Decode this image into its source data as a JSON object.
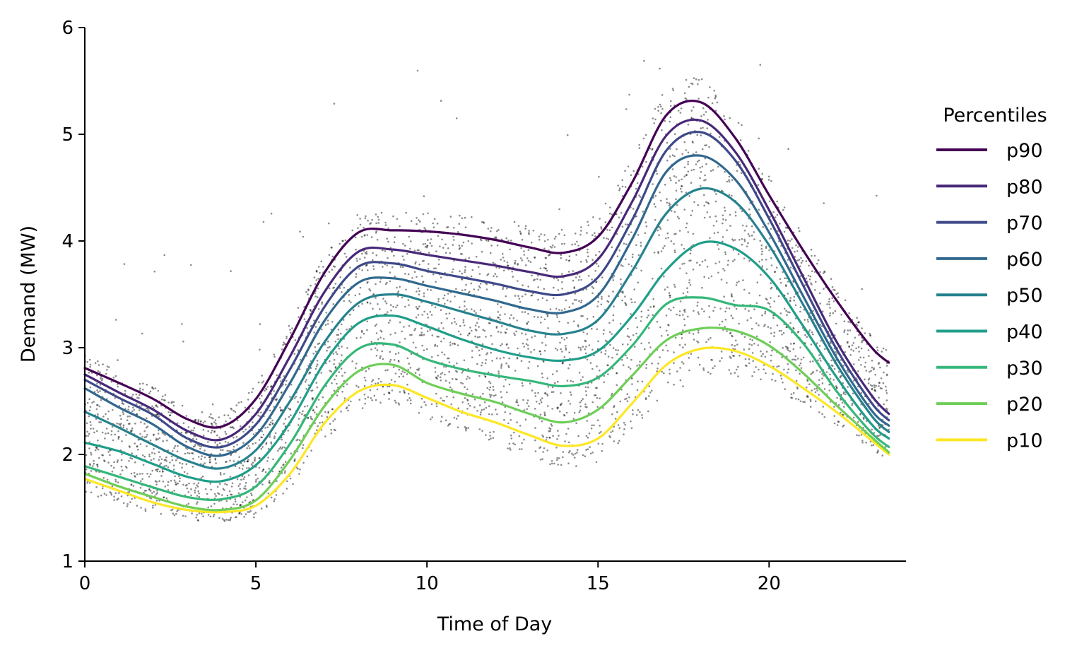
{
  "chart_data": {
    "type": "line",
    "title": "",
    "xlabel": "Time of Day",
    "ylabel": "Demand (MW)",
    "xlim": [
      0,
      24
    ],
    "ylim": [
      1,
      6
    ],
    "xticks": [
      0,
      5,
      10,
      15,
      20
    ],
    "yticks": [
      1,
      2,
      3,
      4,
      5,
      6
    ],
    "grid": false,
    "legend": {
      "title": "Percentiles",
      "placement": "outside-right"
    },
    "x": [
      0,
      1,
      2,
      3,
      4,
      5,
      6,
      7,
      8,
      9,
      10,
      11,
      12,
      13,
      14,
      15,
      16,
      17,
      18,
      19,
      20,
      21,
      22,
      23,
      23.5
    ],
    "series": [
      {
        "name": "p90",
        "color": "#440154",
        "values": [
          2.81,
          2.67,
          2.52,
          2.33,
          2.26,
          2.52,
          3.08,
          3.7,
          4.08,
          4.1,
          4.09,
          4.06,
          4.01,
          3.94,
          3.89,
          4.04,
          4.55,
          5.18,
          5.3,
          4.97,
          4.43,
          3.91,
          3.43,
          3.0,
          2.86
        ]
      },
      {
        "name": "p80",
        "color": "#482878",
        "values": [
          2.75,
          2.58,
          2.42,
          2.22,
          2.14,
          2.38,
          2.92,
          3.52,
          3.9,
          3.92,
          3.87,
          3.82,
          3.77,
          3.71,
          3.67,
          3.83,
          4.37,
          4.99,
          5.13,
          4.84,
          4.29,
          3.66,
          3.04,
          2.55,
          2.38
        ]
      },
      {
        "name": "p70",
        "color": "#3e4989",
        "values": [
          2.7,
          2.53,
          2.37,
          2.15,
          2.07,
          2.28,
          2.8,
          3.38,
          3.76,
          3.79,
          3.72,
          3.66,
          3.6,
          3.53,
          3.5,
          3.66,
          4.2,
          4.85,
          5.02,
          4.76,
          4.21,
          3.58,
          2.97,
          2.48,
          2.32
        ]
      },
      {
        "name": "p60",
        "color": "#31688e",
        "values": [
          2.62,
          2.44,
          2.28,
          2.07,
          1.99,
          2.18,
          2.67,
          3.25,
          3.61,
          3.65,
          3.58,
          3.51,
          3.44,
          3.36,
          3.33,
          3.49,
          4.02,
          4.65,
          4.8,
          4.58,
          4.08,
          3.48,
          2.89,
          2.41,
          2.27
        ]
      },
      {
        "name": "p50",
        "color": "#26828e",
        "values": [
          2.4,
          2.25,
          2.09,
          1.94,
          1.87,
          2.04,
          2.5,
          3.05,
          3.42,
          3.5,
          3.43,
          3.34,
          3.25,
          3.16,
          3.13,
          3.26,
          3.72,
          4.26,
          4.49,
          4.37,
          3.96,
          3.4,
          2.83,
          2.36,
          2.21
        ]
      },
      {
        "name": "p40",
        "color": "#1f9e89",
        "values": [
          2.11,
          2.03,
          1.91,
          1.79,
          1.75,
          1.9,
          2.3,
          2.86,
          3.23,
          3.3,
          3.2,
          3.08,
          2.98,
          2.91,
          2.88,
          2.97,
          3.3,
          3.73,
          3.98,
          3.93,
          3.66,
          3.2,
          2.71,
          2.28,
          2.15
        ]
      },
      {
        "name": "p30",
        "color": "#35b779",
        "values": [
          1.89,
          1.79,
          1.69,
          1.6,
          1.58,
          1.7,
          2.1,
          2.64,
          2.99,
          3.03,
          2.89,
          2.8,
          2.74,
          2.69,
          2.64,
          2.72,
          3.02,
          3.41,
          3.47,
          3.4,
          3.35,
          3.04,
          2.58,
          2.2,
          2.07
        ]
      },
      {
        "name": "p20",
        "color": "#6ece58",
        "values": [
          1.82,
          1.7,
          1.6,
          1.51,
          1.48,
          1.57,
          1.95,
          2.45,
          2.78,
          2.84,
          2.67,
          2.57,
          2.49,
          2.38,
          2.3,
          2.42,
          2.74,
          3.07,
          3.18,
          3.16,
          3.02,
          2.76,
          2.45,
          2.16,
          2.02
        ]
      },
      {
        "name": "p10",
        "color": "#fde725",
        "values": [
          1.77,
          1.66,
          1.55,
          1.48,
          1.46,
          1.52,
          1.82,
          2.29,
          2.59,
          2.65,
          2.53,
          2.4,
          2.3,
          2.18,
          2.08,
          2.15,
          2.48,
          2.84,
          2.99,
          2.97,
          2.83,
          2.62,
          2.39,
          2.13,
          2.0
        ]
      }
    ]
  }
}
